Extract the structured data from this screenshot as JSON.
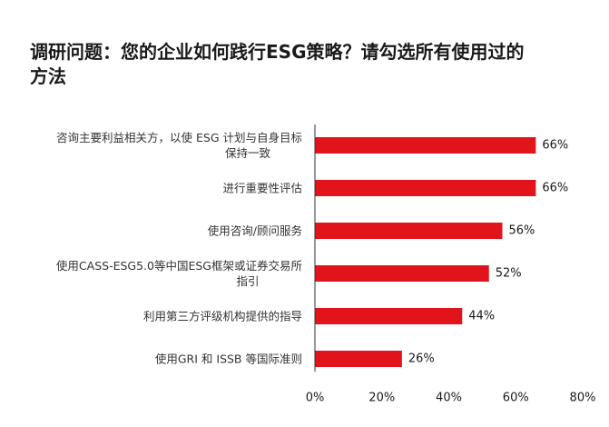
{
  "chart_data": {
    "type": "bar",
    "orientation": "horizontal",
    "title": "调研问题：您的企业如何践行ESG策略？请勾选所有使用过的方法",
    "categories": [
      "咨询主要利益相关方，以使 ESG 计划与自身目标保持一致",
      "进行重要性评估",
      "使用咨询/顾问服务",
      "使用CASS-ESG5.0等中国ESG框架或证券交易所指引",
      "利用第三方评级机构提供的指导",
      "使用GRI 和 ISSB 等国际准则"
    ],
    "category_lines": [
      [
        "咨询主要利益相关方，以使 ESG 计划与自身目标",
        "保持一致"
      ],
      [
        "进行重要性评估"
      ],
      [
        "使用咨询/顾问服务"
      ],
      [
        "使用CASS-ESG5.0等中国ESG框架或证券交易所",
        "指引"
      ],
      [
        "利用第三方评级机构提供的指导"
      ],
      [
        "使用GRI 和 ISSB 等国际准则"
      ]
    ],
    "values": [
      66,
      66,
      56,
      52,
      44,
      26
    ],
    "data_labels": [
      "66%",
      "66%",
      "56%",
      "52%",
      "44%",
      "26%"
    ],
    "x_ticks": [
      "0%",
      "20%",
      "40%",
      "60%",
      "80%"
    ],
    "x_tick_values": [
      0,
      20,
      40,
      60,
      80
    ],
    "xlim": [
      0,
      80
    ],
    "bar_color": "#e0141a",
    "axis_color": "#333333",
    "grid": false,
    "legend": false
  }
}
